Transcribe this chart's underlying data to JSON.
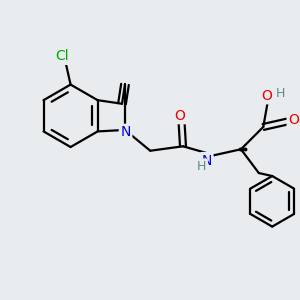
{
  "background_color": "#e8ecee",
  "bond_color": "#000000",
  "atom_colors": {
    "N": "#0000ee",
    "O": "#ee0000",
    "Cl": "#00aa00",
    "H": "#5a8a8a",
    "C": "#000000"
  },
  "bond_width": 1.6,
  "figsize": [
    3.0,
    3.0
  ],
  "dpi": 100
}
